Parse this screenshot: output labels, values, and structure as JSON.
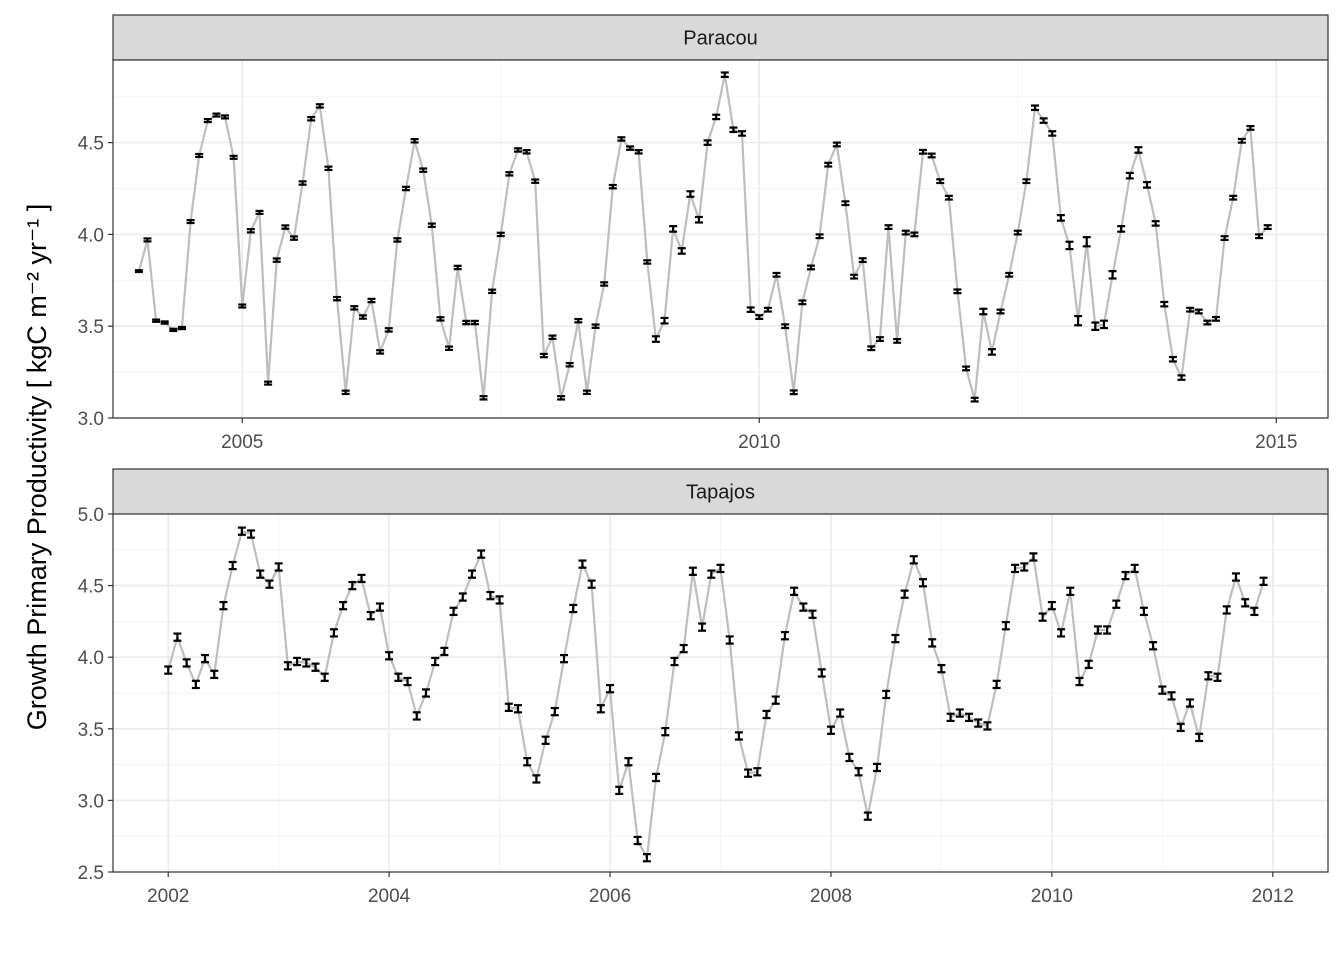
{
  "colors": {
    "line": "#bebebe",
    "point": "#000000",
    "strip": "#d9d9d9",
    "grid": "#ebebeb"
  },
  "chart_data": [
    {
      "type": "line",
      "panel": "Paracou",
      "ylabel": "Growth Primary Productivity [ kgC m⁻² yr⁻¹ ]",
      "xlim": [
        "2003-10-01",
        "2015-07-01"
      ],
      "ylim": [
        3.0,
        4.95
      ],
      "x_ticks": [
        2005,
        2010,
        2015
      ],
      "y_ticks": [
        3.0,
        3.5,
        4.0,
        4.5
      ],
      "grid": true,
      "x": [
        "2004-01",
        "2004-02",
        "2004-03",
        "2004-04",
        "2004-05",
        "2004-06",
        "2004-07",
        "2004-08",
        "2004-09",
        "2004-10",
        "2004-11",
        "2004-12",
        "2005-01",
        "2005-02",
        "2005-03",
        "2005-04",
        "2005-05",
        "2005-06",
        "2005-07",
        "2005-08",
        "2005-09",
        "2005-10",
        "2005-11",
        "2005-12",
        "2006-01",
        "2006-02",
        "2006-03",
        "2006-04",
        "2006-05",
        "2006-06",
        "2006-07",
        "2006-08",
        "2006-09",
        "2006-10",
        "2006-11",
        "2006-12",
        "2007-01",
        "2007-02",
        "2007-03",
        "2007-04",
        "2007-05",
        "2007-06",
        "2007-07",
        "2007-08",
        "2007-09",
        "2007-10",
        "2007-11",
        "2007-12",
        "2008-01",
        "2008-02",
        "2008-03",
        "2008-04",
        "2008-05",
        "2008-06",
        "2008-07",
        "2008-08",
        "2008-09",
        "2008-10",
        "2008-11",
        "2008-12",
        "2009-01",
        "2009-02",
        "2009-03",
        "2009-04",
        "2009-05",
        "2009-06",
        "2009-07",
        "2009-08",
        "2009-09",
        "2009-10",
        "2009-11",
        "2009-12",
        "2010-01",
        "2010-02",
        "2010-03",
        "2010-04",
        "2010-05",
        "2010-06",
        "2010-07",
        "2010-08",
        "2010-09",
        "2010-10",
        "2010-11",
        "2010-12",
        "2011-01",
        "2011-02",
        "2011-03",
        "2011-04",
        "2011-05",
        "2011-06",
        "2011-07",
        "2011-08",
        "2011-09",
        "2011-10",
        "2011-11",
        "2011-12",
        "2012-01",
        "2012-02",
        "2012-03",
        "2012-04",
        "2012-05",
        "2012-06",
        "2012-07",
        "2012-08",
        "2012-09",
        "2012-10",
        "2012-11",
        "2012-12",
        "2013-01",
        "2013-02",
        "2013-03",
        "2013-04",
        "2013-05",
        "2013-06",
        "2013-07",
        "2013-08",
        "2013-09",
        "2013-10",
        "2013-11",
        "2013-12",
        "2014-01",
        "2014-02",
        "2014-03",
        "2014-04",
        "2014-05",
        "2014-06",
        "2014-07",
        "2014-08",
        "2014-09",
        "2014-10",
        "2014-11",
        "2014-12"
      ],
      "y": [
        3.8,
        3.97,
        3.53,
        3.52,
        3.48,
        3.49,
        4.07,
        4.43,
        4.62,
        4.65,
        4.64,
        4.42,
        3.61,
        4.02,
        4.12,
        3.19,
        3.86,
        4.04,
        3.98,
        4.28,
        4.63,
        4.7,
        4.36,
        3.65,
        3.14,
        3.6,
        3.55,
        3.64,
        3.36,
        3.48,
        3.97,
        4.25,
        4.51,
        4.35,
        4.05,
        3.54,
        3.38,
        3.82,
        3.52,
        3.52,
        3.11,
        3.69,
        4.0,
        4.33,
        4.46,
        4.45,
        4.29,
        3.34,
        3.44,
        3.11,
        3.29,
        3.53,
        3.14,
        3.5,
        3.73,
        4.26,
        4.52,
        4.47,
        4.45,
        3.85,
        3.43,
        3.53,
        4.03,
        3.91,
        4.22,
        4.08,
        4.5,
        4.64,
        4.87,
        4.57,
        4.55,
        3.59,
        3.55,
        3.59,
        3.78,
        3.5,
        3.14,
        3.63,
        3.82,
        3.99,
        4.38,
        4.49,
        4.17,
        3.77,
        3.86,
        3.38,
        3.43,
        4.04,
        3.42,
        4.01,
        4.0,
        4.45,
        4.43,
        4.29,
        4.2,
        3.69,
        3.27,
        3.1,
        3.58,
        3.36,
        3.58,
        3.78,
        4.01,
        4.29,
        4.69,
        4.62,
        4.55,
        4.09,
        3.94,
        3.53,
        3.96,
        3.5,
        3.51,
        3.78,
        4.03,
        4.32,
        4.46,
        4.27,
        4.06,
        3.62,
        3.32,
        3.22,
        3.59,
        3.58,
        3.52,
        3.54,
        3.98,
        4.2,
        4.51,
        4.58,
        3.99,
        4.04
      ],
      "err": [
        0.005,
        0.008,
        0.006,
        0.006,
        0.006,
        0.006,
        0.008,
        0.008,
        0.008,
        0.008,
        0.008,
        0.008,
        0.008,
        0.009,
        0.008,
        0.008,
        0.009,
        0.009,
        0.009,
        0.009,
        0.009,
        0.009,
        0.009,
        0.009,
        0.009,
        0.009,
        0.009,
        0.009,
        0.009,
        0.009,
        0.009,
        0.009,
        0.009,
        0.009,
        0.009,
        0.009,
        0.009,
        0.009,
        0.009,
        0.009,
        0.009,
        0.009,
        0.009,
        0.009,
        0.009,
        0.009,
        0.009,
        0.009,
        0.009,
        0.009,
        0.009,
        0.009,
        0.009,
        0.009,
        0.009,
        0.009,
        0.009,
        0.009,
        0.009,
        0.009,
        0.015,
        0.015,
        0.015,
        0.015,
        0.015,
        0.015,
        0.012,
        0.012,
        0.012,
        0.012,
        0.012,
        0.012,
        0.01,
        0.01,
        0.01,
        0.01,
        0.01,
        0.01,
        0.01,
        0.01,
        0.01,
        0.01,
        0.01,
        0.01,
        0.01,
        0.01,
        0.01,
        0.01,
        0.01,
        0.01,
        0.01,
        0.01,
        0.01,
        0.01,
        0.01,
        0.01,
        0.01,
        0.01,
        0.015,
        0.015,
        0.01,
        0.01,
        0.01,
        0.01,
        0.012,
        0.012,
        0.012,
        0.015,
        0.02,
        0.025,
        0.025,
        0.02,
        0.02,
        0.02,
        0.015,
        0.015,
        0.015,
        0.015,
        0.012,
        0.012,
        0.012,
        0.012,
        0.01,
        0.01,
        0.01,
        0.01,
        0.01,
        0.01,
        0.01,
        0.01,
        0.01,
        0.01
      ]
    },
    {
      "type": "line",
      "panel": "Tapajos",
      "ylabel": "Growth Primary Productivity [ kgC m⁻² yr⁻¹ ]",
      "xlim": [
        "2001-07-01",
        "2012-07-01"
      ],
      "ylim": [
        2.5,
        5.0
      ],
      "x_ticks": [
        2002,
        2004,
        2006,
        2008,
        2010,
        2012
      ],
      "y_ticks": [
        2.5,
        3.0,
        3.5,
        4.0,
        4.5,
        5.0
      ],
      "grid": true,
      "x": [
        "2002-01",
        "2002-02",
        "2002-03",
        "2002-04",
        "2002-05",
        "2002-06",
        "2002-07",
        "2002-08",
        "2002-09",
        "2002-10",
        "2002-11",
        "2002-12",
        "2003-01",
        "2003-02",
        "2003-03",
        "2003-04",
        "2003-05",
        "2003-06",
        "2003-07",
        "2003-08",
        "2003-09",
        "2003-10",
        "2003-11",
        "2003-12",
        "2004-01",
        "2004-02",
        "2004-03",
        "2004-04",
        "2004-05",
        "2004-06",
        "2004-07",
        "2004-08",
        "2004-09",
        "2004-10",
        "2004-11",
        "2004-12",
        "2005-01",
        "2005-02",
        "2005-03",
        "2005-04",
        "2005-05",
        "2005-06",
        "2005-07",
        "2005-08",
        "2005-09",
        "2005-10",
        "2005-11",
        "2005-12",
        "2006-01",
        "2006-02",
        "2006-03",
        "2006-04",
        "2006-05",
        "2006-06",
        "2006-07",
        "2006-08",
        "2006-09",
        "2006-10",
        "2006-11",
        "2006-12",
        "2007-01",
        "2007-02",
        "2007-03",
        "2007-04",
        "2007-05",
        "2007-06",
        "2007-07",
        "2007-08",
        "2007-09",
        "2007-10",
        "2007-11",
        "2007-12",
        "2008-01",
        "2008-02",
        "2008-03",
        "2008-04",
        "2008-05",
        "2008-06",
        "2008-07",
        "2008-08",
        "2008-09",
        "2008-10",
        "2008-11",
        "2008-12",
        "2009-01",
        "2009-02",
        "2009-03",
        "2009-04",
        "2009-05",
        "2009-06",
        "2009-07",
        "2009-08",
        "2009-09",
        "2009-10",
        "2009-11",
        "2009-12",
        "2010-01",
        "2010-02",
        "2010-03",
        "2010-04",
        "2010-05",
        "2010-06",
        "2010-07",
        "2010-08",
        "2010-09",
        "2010-10",
        "2010-11",
        "2010-12",
        "2011-01",
        "2011-02",
        "2011-03",
        "2011-04",
        "2011-05",
        "2011-06",
        "2011-07",
        "2011-08",
        "2011-09",
        "2011-10",
        "2011-11",
        "2011-12"
      ],
      "y": [
        3.91,
        4.14,
        3.96,
        3.81,
        3.99,
        3.88,
        4.36,
        4.64,
        4.88,
        4.86,
        4.58,
        4.51,
        4.63,
        3.94,
        3.97,
        3.96,
        3.93,
        3.86,
        4.17,
        4.36,
        4.5,
        4.55,
        4.29,
        4.35,
        4.01,
        3.86,
        3.83,
        3.59,
        3.75,
        3.97,
        4.04,
        4.32,
        4.42,
        4.58,
        4.72,
        4.43,
        4.4,
        3.65,
        3.64,
        3.27,
        3.15,
        3.42,
        3.62,
        3.99,
        4.34,
        4.65,
        4.51,
        3.64,
        3.78,
        3.07,
        3.27,
        2.72,
        2.6,
        3.16,
        3.48,
        3.97,
        4.06,
        4.6,
        4.21,
        4.58,
        4.62,
        4.12,
        3.45,
        3.19,
        3.2,
        3.6,
        3.7,
        4.15,
        4.46,
        4.35,
        4.3,
        3.89,
        3.49,
        3.61,
        3.3,
        3.2,
        2.89,
        3.23,
        3.74,
        4.13,
        4.44,
        4.68,
        4.52,
        4.1,
        3.92,
        3.58,
        3.61,
        3.58,
        3.54,
        3.52,
        3.81,
        4.22,
        4.62,
        4.63,
        4.7,
        4.28,
        4.36,
        4.17,
        4.46,
        3.83,
        3.95,
        4.19,
        4.19,
        4.37,
        4.57,
        4.62,
        4.32,
        4.08,
        3.77,
        3.73,
        3.51,
        3.68,
        3.44,
        3.87,
        3.86,
        4.33,
        4.56,
        4.38,
        4.32,
        4.53
      ]
    }
  ]
}
